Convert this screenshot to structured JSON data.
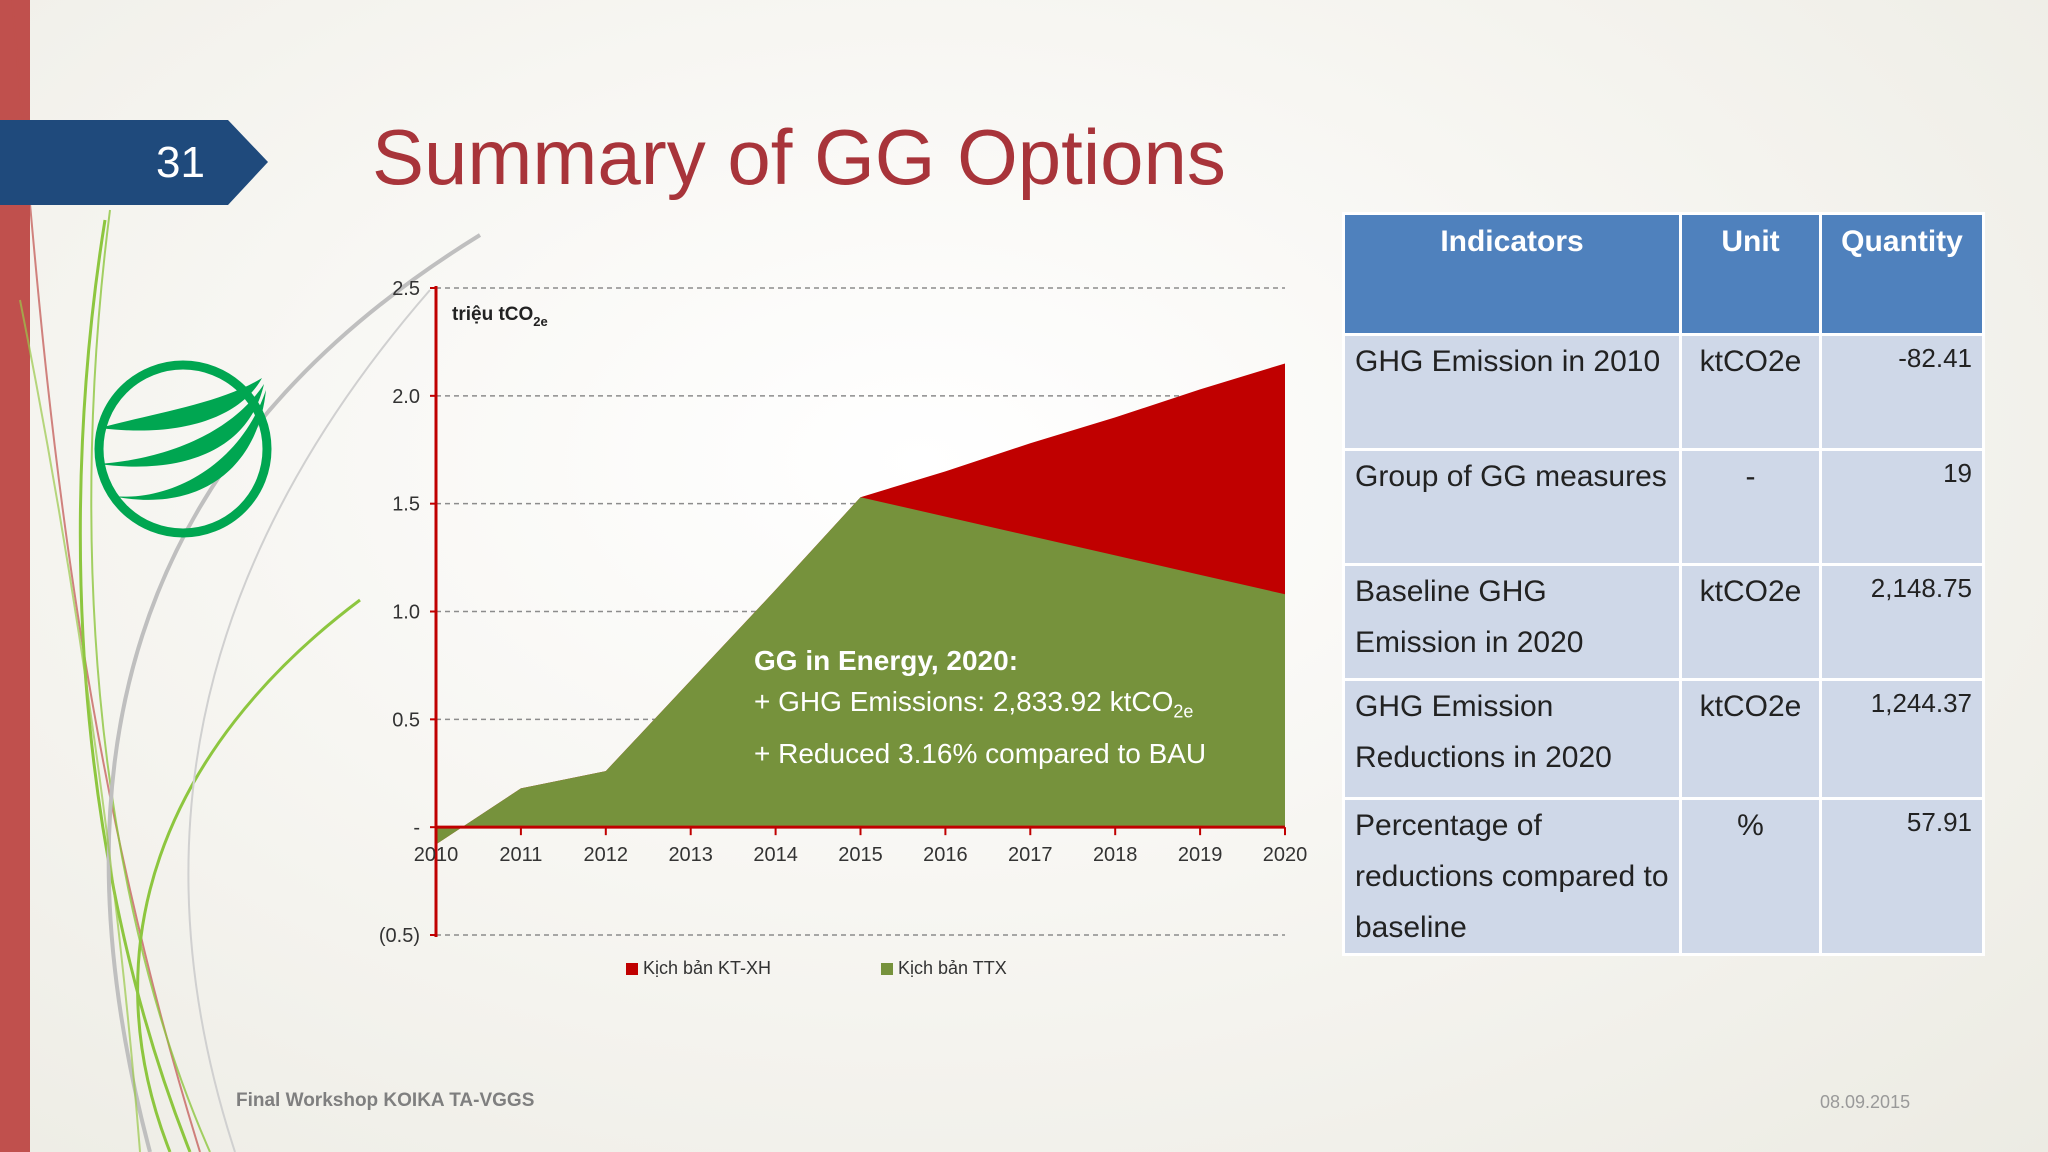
{
  "slide": {
    "number": "31",
    "title": "Summary of GG Options",
    "footer_left": "Final Workshop KOIKA TA-VGGS",
    "footer_right": "08.09.2015"
  },
  "colors": {
    "title": "#a8343a",
    "slide_tab": "#1f4a7c",
    "kt_xh": "#c00000",
    "ttx": "#76923c",
    "table_header": "#4f81bd",
    "table_cell": "#cfd8e8"
  },
  "chart_data": {
    "type": "area",
    "ylabel": "triệu tCO",
    "ylabel_sub": "2e",
    "x": [
      "2010",
      "2011",
      "2012",
      "2013",
      "2014",
      "2015",
      "2016",
      "2017",
      "2018",
      "2019",
      "2020"
    ],
    "ylim": [
      -0.5,
      2.5
    ],
    "y_ticks": [
      {
        "v": 2.5,
        "label": "2.5"
      },
      {
        "v": 2.0,
        "label": "2.0"
      },
      {
        "v": 1.5,
        "label": "1.5"
      },
      {
        "v": 1.0,
        "label": "1.0"
      },
      {
        "v": 0.5,
        "label": "0.5"
      },
      {
        "v": 0,
        "label": "-"
      },
      {
        "v": -0.5,
        "label": "(0.5)"
      }
    ],
    "grid": "dashed",
    "series": [
      {
        "name": "Kịch bản KT-XH",
        "color": "#c00000",
        "values": [
          -0.08,
          0.18,
          0.26,
          0.68,
          1.1,
          1.53,
          1.65,
          1.78,
          1.9,
          2.03,
          2.15
        ]
      },
      {
        "name": "Kịch bản TTX",
        "color": "#76923c",
        "values": [
          -0.08,
          0.18,
          0.26,
          0.68,
          1.1,
          1.53,
          1.44,
          1.35,
          1.26,
          1.17,
          1.08
        ]
      }
    ],
    "legend": [
      "Kịch bản KT-XH",
      "Kịch bản TTX"
    ],
    "legend_position": "bottom",
    "annotation": {
      "title": "GG in Energy, 2020:",
      "line1": "+ GHG Emissions: 2,833.92 ktCO",
      "line1_sub": "2e",
      "line2": "+ Reduced 3.16% compared to BAU"
    }
  },
  "table": {
    "headers": [
      "Indicators",
      "Unit",
      "Quantity"
    ],
    "rows": [
      {
        "indicator": "GHG Emission in 2010",
        "unit": "ktCO2e",
        "quantity": "-82.41"
      },
      {
        "indicator": "Group of GG measures",
        "unit": "-",
        "quantity": "19"
      },
      {
        "indicator": "Baseline GHG Emission in 2020",
        "unit": "ktCO2e",
        "quantity": "2,148.75"
      },
      {
        "indicator": "GHG Emission Reductions in 2020",
        "unit": "ktCO2e",
        "quantity": "1,244.37"
      },
      {
        "indicator": "Percentage of reductions compared to baseline",
        "unit": "%",
        "quantity": "57.91"
      }
    ]
  }
}
